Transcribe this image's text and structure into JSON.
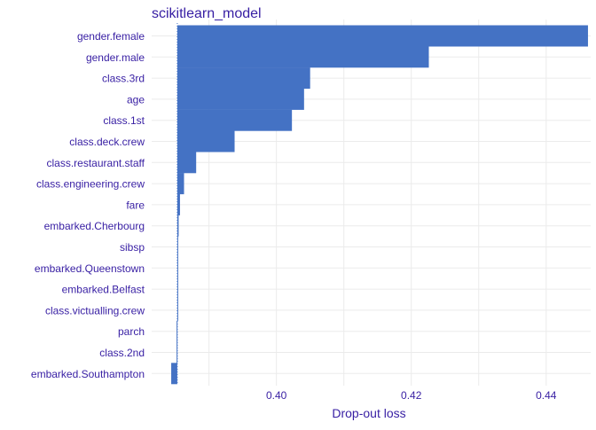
{
  "chart_data": {
    "type": "bar",
    "title": "scikitlearn_model",
    "xlabel": "Drop-out loss",
    "ylabel": "",
    "baseline": 0.3853,
    "xlim": [
      0.3815,
      0.4466
    ],
    "xticks": [
      0.4,
      0.42,
      0.44
    ],
    "xtick_labels": [
      "0.40",
      "0.42",
      "0.44"
    ],
    "grid": true,
    "legend": "none",
    "bar_color": "#4472C4",
    "text_color": "#371EA3",
    "grid_color": "#EBEBEB",
    "categories": [
      "gender.female",
      "gender.male",
      "class.3rd",
      "age",
      "class.1st",
      "class.deck.crew",
      "class.restaurant.staff",
      "class.engineering.crew",
      "fare",
      "embarked.Cherbourg",
      "sibsp",
      "embarked.Queenstown",
      "embarked.Belfast",
      "class.victualling.crew",
      "parch",
      "class.2nd",
      "embarked.Southampton"
    ],
    "values": [
      0.4462,
      0.4226,
      0.405,
      0.4041,
      0.4023,
      0.3938,
      0.3881,
      0.3863,
      0.3857,
      0.3855,
      0.3854,
      0.3853,
      0.3853,
      0.3853,
      0.3852,
      0.3852,
      0.3844
    ]
  }
}
